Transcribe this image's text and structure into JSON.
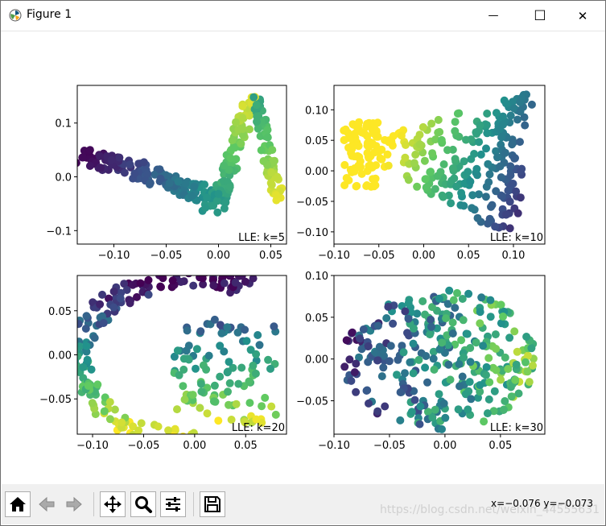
{
  "window": {
    "title": "Figure 1",
    "minimize_glyph": "—",
    "maximize_glyph": "☐",
    "close_glyph": "✕"
  },
  "toolbar": {
    "buttons": [
      {
        "name": "home-button",
        "icon": "home-icon"
      },
      {
        "name": "back-button",
        "icon": "arrow-left-icon"
      },
      {
        "name": "forward-button",
        "icon": "arrow-right-icon"
      },
      {
        "name": "pan-button",
        "icon": "move-icon"
      },
      {
        "name": "zoom-button",
        "icon": "magnifier-icon"
      },
      {
        "name": "subplots-button",
        "icon": "sliders-icon"
      },
      {
        "name": "save-button",
        "icon": "floppy-disk-icon"
      }
    ],
    "coords": "x=−0.076 y=−0.073",
    "watermark": "https://blog.csdn.net/weixin_44555631"
  },
  "chart_data": [
    {
      "type": "scatter",
      "title": "",
      "annotation": "LLE: k=5",
      "xlim": [
        -0.135,
        0.065
      ],
      "ylim": [
        -0.125,
        0.17
      ],
      "xticks": [
        -0.1,
        -0.05,
        0.0,
        0.05
      ],
      "xticklabels": [
        "−0.10",
        "−0.05",
        "0.00",
        "0.05"
      ],
      "yticks": [
        -0.1,
        0.0,
        0.1
      ],
      "yticklabels": [
        "−0.1",
        "0.0",
        "0.1"
      ],
      "colormap": [
        "#440154",
        "#3b528b",
        "#21918c",
        "#5ec962",
        "#fde725"
      ],
      "shape": "arm"
    },
    {
      "type": "scatter",
      "title": "",
      "annotation": "LLE: k=10",
      "xlim": [
        -0.1,
        0.135
      ],
      "ylim": [
        -0.12,
        0.14
      ],
      "xticks": [
        -0.1,
        -0.05,
        0.0,
        0.05,
        0.1
      ],
      "xticklabels": [
        "−0.10",
        "−0.05",
        "0.00",
        "0.05",
        "0.10"
      ],
      "yticks": [
        -0.1,
        -0.05,
        0.0,
        0.05,
        0.1
      ],
      "yticklabels": [
        "−0.10",
        "−0.05",
        "0.00",
        "0.05",
        "0.10"
      ],
      "colormap": [
        "#440154",
        "#3b528b",
        "#21918c",
        "#5ec962",
        "#fde725"
      ],
      "shape": "triangle"
    },
    {
      "type": "scatter",
      "title": "",
      "annotation": "LLE: k=20",
      "xlim": [
        -0.115,
        0.09
      ],
      "ylim": [
        -0.09,
        0.09
      ],
      "xticks": [
        -0.1,
        -0.05,
        0.0,
        0.05
      ],
      "xticklabels": [
        "−0.10",
        "−0.05",
        "0.00",
        "0.05"
      ],
      "yticks": [
        -0.05,
        0.0,
        0.05
      ],
      "yticklabels": [
        "−0.05",
        "0.00",
        "0.05"
      ],
      "colormap": [
        "#440154",
        "#3b528b",
        "#21918c",
        "#5ec962",
        "#fde725"
      ],
      "shape": "crescent"
    },
    {
      "type": "scatter",
      "title": "",
      "annotation": "LLE: k=30",
      "xlim": [
        -0.1,
        0.09
      ],
      "ylim": [
        -0.09,
        0.1
      ],
      "xticks": [
        -0.1,
        -0.05,
        0.0,
        0.05
      ],
      "xticklabels": [
        "−0.10",
        "−0.05",
        "0.00",
        "0.05"
      ],
      "yticks": [
        -0.05,
        0.0,
        0.05,
        0.1
      ],
      "yticklabels": [
        "−0.05",
        "0.00",
        "0.05",
        "0.10"
      ],
      "colormap": [
        "#440154",
        "#3b528b",
        "#21918c",
        "#5ec962",
        "#fde725"
      ],
      "shape": "disc"
    }
  ]
}
